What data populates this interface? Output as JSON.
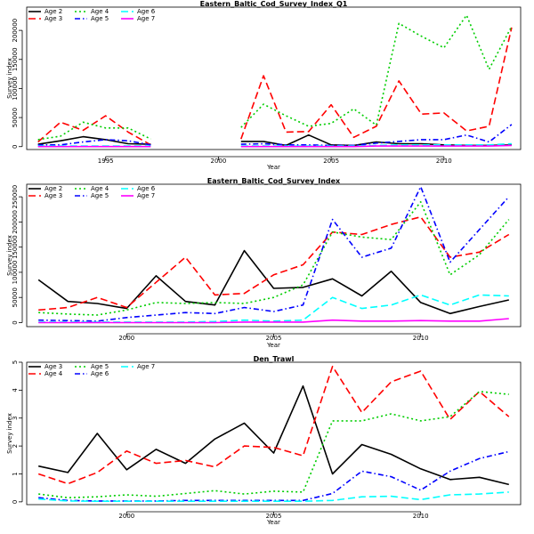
{
  "colors": {
    "black": "#000000",
    "red": "#ff0000",
    "green": "#00cd00",
    "blue": "#0000ff",
    "cyan": "#00ffff",
    "magenta": "#ff00ff"
  },
  "chart_data": [
    {
      "type": "line",
      "title": "Eastern_Baltic_Cod_Survey_Index_Q1",
      "xlabel": "Year",
      "ylabel": "Survey index",
      "xlim": [
        1991.5,
        2013.4
      ],
      "ylim": [
        -5000,
        240000
      ],
      "xticks": [
        1995,
        2000,
        2005,
        2010
      ],
      "yticks": [
        0,
        50000,
        100000,
        150000,
        200000
      ],
      "legend_position": "top-left",
      "legend": [
        "Age 2",
        "Age 3",
        "Age 4",
        "Age 5",
        "Age 6",
        "Age 7"
      ],
      "series": [
        {
          "name": "Age 2",
          "color": "black",
          "dash": "solid",
          "segments": [
            {
              "x": [
                1992,
                1993,
                1994,
                1995,
                1996,
                1997
              ],
              "y": [
                4000,
                10000,
                17000,
                12000,
                5000,
                4000
              ]
            },
            {
              "x": [
                2001,
                2002,
                2003,
                2004,
                2005,
                2006,
                2007,
                2008,
                2009,
                2010,
                2011,
                2012,
                2013
              ],
              "y": [
                9000,
                9000,
                2000,
                20000,
                3000,
                2000,
                8000,
                5000,
                5000,
                3000,
                2000,
                2000,
                3000
              ]
            }
          ]
        },
        {
          "name": "Age 3",
          "color": "red",
          "dash": "long",
          "segments": [
            {
              "x": [
                1992,
                1993,
                1994,
                1995,
                1996,
                1997
              ],
              "y": [
                8000,
                42000,
                28000,
                53000,
                25000,
                3000
              ]
            },
            {
              "x": [
                2001,
                2002,
                2003,
                2004,
                2005,
                2006,
                2007,
                2008,
                2009,
                2010,
                2011,
                2012,
                2013
              ],
              "y": [
                13000,
                122000,
                25000,
                26000,
                72000,
                16000,
                35000,
                113000,
                56000,
                58000,
                27000,
                35000,
                205000
              ]
            }
          ]
        },
        {
          "name": "Age 4",
          "color": "green",
          "dash": "dot",
          "segments": [
            {
              "x": [
                1992,
                1993,
                1994,
                1995,
                1996,
                1997
              ],
              "y": [
                12000,
                18000,
                42000,
                32000,
                32000,
                13000
              ]
            },
            {
              "x": [
                2001,
                2002,
                2003,
                2004,
                2005,
                2006,
                2007,
                2008,
                2009,
                2010,
                2011,
                2012,
                2013
              ],
              "y": [
                33000,
                73000,
                53000,
                35000,
                40000,
                65000,
                37000,
                212000,
                190000,
                170000,
                226000,
                133000,
                207000
              ]
            }
          ]
        },
        {
          "name": "Age 5",
          "color": "blue",
          "dash": "dashdot",
          "segments": [
            {
              "x": [
                1992,
                1993,
                1994,
                1995,
                1996,
                1997
              ],
              "y": [
                3000,
                3000,
                8000,
                12000,
                10000,
                3000
              ]
            },
            {
              "x": [
                2001,
                2002,
                2003,
                2004,
                2005,
                2006,
                2007,
                2008,
                2009,
                2010,
                2011,
                2012,
                2013
              ],
              "y": [
                4000,
                5000,
                3000,
                3000,
                2000,
                2000,
                6000,
                9000,
                12000,
                12000,
                20000,
                8000,
                38000
              ]
            }
          ]
        },
        {
          "name": "Age 6",
          "color": "cyan",
          "dash": "long",
          "segments": [
            {
              "x": [
                1992,
                1993,
                1994,
                1995,
                1996,
                1997
              ],
              "y": [
                1000,
                1000,
                1000,
                1000,
                1000,
                1000
              ]
            },
            {
              "x": [
                2001,
                2002,
                2003,
                2004,
                2005,
                2006,
                2007,
                2008,
                2009,
                2010,
                2011,
                2012,
                2013
              ],
              "y": [
                1000,
                1000,
                1000,
                1000,
                1000,
                1000,
                2000,
                3000,
                3000,
                3000,
                3000,
                3000,
                5000
              ]
            }
          ]
        },
        {
          "name": "Age 7",
          "color": "magenta",
          "dash": "solid",
          "segments": [
            {
              "x": [
                1992,
                1993,
                1994,
                1995,
                1996,
                1997
              ],
              "y": [
                0,
                0,
                0,
                0,
                0,
                0
              ]
            },
            {
              "x": [
                2001,
                2002,
                2003,
                2004,
                2005,
                2006,
                2007,
                2008,
                2009,
                2010,
                2011,
                2012,
                2013
              ],
              "y": [
                0,
                0,
                0,
                0,
                0,
                0,
                1000,
                1000,
                1000,
                1000,
                1000,
                1000,
                2000
              ]
            }
          ]
        }
      ]
    },
    {
      "type": "line",
      "title": "Eastern_Baltic_Cod_Survey_Index",
      "xlabel": "Year",
      "ylabel": "Survey index",
      "xlim": [
        1996.6,
        2013.4
      ],
      "ylim": [
        -8000,
        275000
      ],
      "xticks": [
        2000,
        2005,
        2010
      ],
      "yticks": [
        0,
        50000,
        100000,
        150000,
        200000,
        250000
      ],
      "legend_position": "top-left",
      "legend": [
        "Age 2",
        "Age 3",
        "Age 4",
        "Age 5",
        "Age 6",
        "Age 7"
      ],
      "series": [
        {
          "name": "Age 2",
          "color": "black",
          "dash": "solid",
          "segments": [
            {
              "x": [
                1997,
                1998,
                1999,
                2000,
                2001,
                2002,
                2003,
                2004,
                2005,
                2006,
                2007,
                2008,
                2009,
                2010,
                2011,
                2012,
                2013
              ],
              "y": [
                85000,
                42000,
                38000,
                28000,
                93000,
                42000,
                35000,
                143000,
                68000,
                70000,
                87000,
                53000,
                102000,
                40000,
                18000,
                32000,
                45000
              ]
            }
          ]
        },
        {
          "name": "Age 3",
          "color": "red",
          "dash": "long",
          "segments": [
            {
              "x": [
                1997,
                1998,
                1999,
                2000,
                2001,
                2002,
                2003,
                2004,
                2005,
                2006,
                2007,
                2008,
                2009,
                2010,
                2011,
                2012,
                2013
              ],
              "y": [
                25000,
                30000,
                50000,
                30000,
                80000,
                130000,
                55000,
                58000,
                95000,
                115000,
                180000,
                175000,
                195000,
                210000,
                130000,
                140000,
                175000
              ]
            }
          ]
        },
        {
          "name": "Age 4",
          "color": "green",
          "dash": "dot",
          "segments": [
            {
              "x": [
                1997,
                1998,
                1999,
                2000,
                2001,
                2002,
                2003,
                2004,
                2005,
                2006,
                2007,
                2008,
                2009,
                2010,
                2011,
                2012,
                2013
              ],
              "y": [
                20000,
                17000,
                15000,
                25000,
                40000,
                38000,
                40000,
                38000,
                50000,
                75000,
                180000,
                170000,
                165000,
                240000,
                95000,
                135000,
                205000
              ]
            }
          ]
        },
        {
          "name": "Age 5",
          "color": "blue",
          "dash": "dashdot",
          "segments": [
            {
              "x": [
                1997,
                1998,
                1999,
                2000,
                2001,
                2002,
                2003,
                2004,
                2005,
                2006,
                2007,
                2008,
                2009,
                2010,
                2011,
                2012,
                2013
              ],
              "y": [
                5000,
                4000,
                3000,
                10000,
                15000,
                20000,
                18000,
                30000,
                22000,
                35000,
                205000,
                130000,
                148000,
                270000,
                120000,
                185000,
                250000
              ]
            }
          ]
        },
        {
          "name": "Age 6",
          "color": "cyan",
          "dash": "long",
          "segments": [
            {
              "x": [
                1997,
                1998,
                1999,
                2000,
                2001,
                2002,
                2003,
                2004,
                2005,
                2006,
                2007,
                2008,
                2009,
                2010,
                2011,
                2012,
                2013
              ],
              "y": [
                1000,
                1000,
                1000,
                1000,
                1000,
                1000,
                2000,
                5000,
                3000,
                5000,
                50000,
                28000,
                35000,
                55000,
                35000,
                55000,
                53000
              ]
            }
          ]
        },
        {
          "name": "Age 7",
          "color": "magenta",
          "dash": "solid",
          "segments": [
            {
              "x": [
                1997,
                1998,
                1999,
                2000,
                2001,
                2002,
                2003,
                2004,
                2005,
                2006,
                2007,
                2008,
                2009,
                2010,
                2011,
                2012,
                2013
              ],
              "y": [
                0,
                0,
                0,
                0,
                0,
                0,
                0,
                1000,
                1000,
                1000,
                5000,
                3000,
                3000,
                4000,
                3000,
                3000,
                8000
              ]
            }
          ]
        }
      ]
    },
    {
      "type": "line",
      "title": "Den_Trawl",
      "xlabel": "Year",
      "ylabel": "Survey index",
      "xlim": [
        1996.6,
        2013.4
      ],
      "ylim": [
        -0.1,
        5.0
      ],
      "xticks": [
        2000,
        2005,
        2010
      ],
      "yticks": [
        0,
        1,
        2,
        3,
        4,
        5
      ],
      "legend_position": "top-left",
      "legend": [
        "Age 3",
        "Age 4",
        "Age 5",
        "Age 6",
        "Age 7"
      ],
      "series": [
        {
          "name": "Age 3",
          "color": "black",
          "dash": "solid",
          "segments": [
            {
              "x": [
                1997,
                1998,
                1999,
                2000,
                2001,
                2002,
                2003,
                2004,
                2005,
                2006,
                2007,
                2008,
                2009,
                2010,
                2011,
                2012,
                2013
              ],
              "y": [
                1.28,
                1.05,
                2.45,
                1.15,
                1.88,
                1.38,
                2.25,
                2.82,
                1.75,
                4.15,
                1.0,
                2.05,
                1.7,
                1.18,
                0.8,
                0.88,
                0.62
              ]
            }
          ]
        },
        {
          "name": "Age 4",
          "color": "red",
          "dash": "long",
          "segments": [
            {
              "x": [
                1997,
                1998,
                1999,
                2000,
                2001,
                2002,
                2003,
                2004,
                2005,
                2006,
                2007,
                2008,
                2009,
                2010,
                2011,
                2012,
                2013
              ],
              "y": [
                1.0,
                0.65,
                1.05,
                1.82,
                1.38,
                1.48,
                1.25,
                2.0,
                1.95,
                1.65,
                4.85,
                3.2,
                4.3,
                4.68,
                2.95,
                3.95,
                3.05
              ]
            }
          ]
        },
        {
          "name": "Age 5",
          "color": "green",
          "dash": "dot",
          "segments": [
            {
              "x": [
                1997,
                1998,
                1999,
                2000,
                2001,
                2002,
                2003,
                2004,
                2005,
                2006,
                2007,
                2008,
                2009,
                2010,
                2011,
                2012,
                2013
              ],
              "y": [
                0.28,
                0.15,
                0.18,
                0.25,
                0.2,
                0.3,
                0.4,
                0.28,
                0.38,
                0.35,
                2.9,
                2.9,
                3.15,
                2.9,
                3.05,
                3.95,
                3.85
              ]
            }
          ]
        },
        {
          "name": "Age 6",
          "color": "blue",
          "dash": "dashdot",
          "segments": [
            {
              "x": [
                1997,
                1998,
                1999,
                2000,
                2001,
                2002,
                2003,
                2004,
                2005,
                2006,
                2007,
                2008,
                2009,
                2010,
                2011,
                2012,
                2013
              ],
              "y": [
                0.15,
                0.05,
                0.03,
                0.03,
                0.03,
                0.05,
                0.05,
                0.05,
                0.05,
                0.05,
                0.3,
                1.1,
                0.9,
                0.42,
                1.1,
                1.55,
                1.8
              ]
            }
          ]
        },
        {
          "name": "Age 7",
          "color": "cyan",
          "dash": "long",
          "segments": [
            {
              "x": [
                1997,
                1998,
                1999,
                2000,
                2001,
                2002,
                2003,
                2004,
                2005,
                2006,
                2007,
                2008,
                2009,
                2010,
                2011,
                2012,
                2013
              ],
              "y": [
                0.1,
                0.03,
                0.02,
                0.02,
                0.02,
                0.02,
                0.02,
                0.02,
                0.02,
                0.02,
                0.05,
                0.18,
                0.2,
                0.08,
                0.25,
                0.28,
                0.35
              ]
            }
          ]
        }
      ]
    }
  ]
}
